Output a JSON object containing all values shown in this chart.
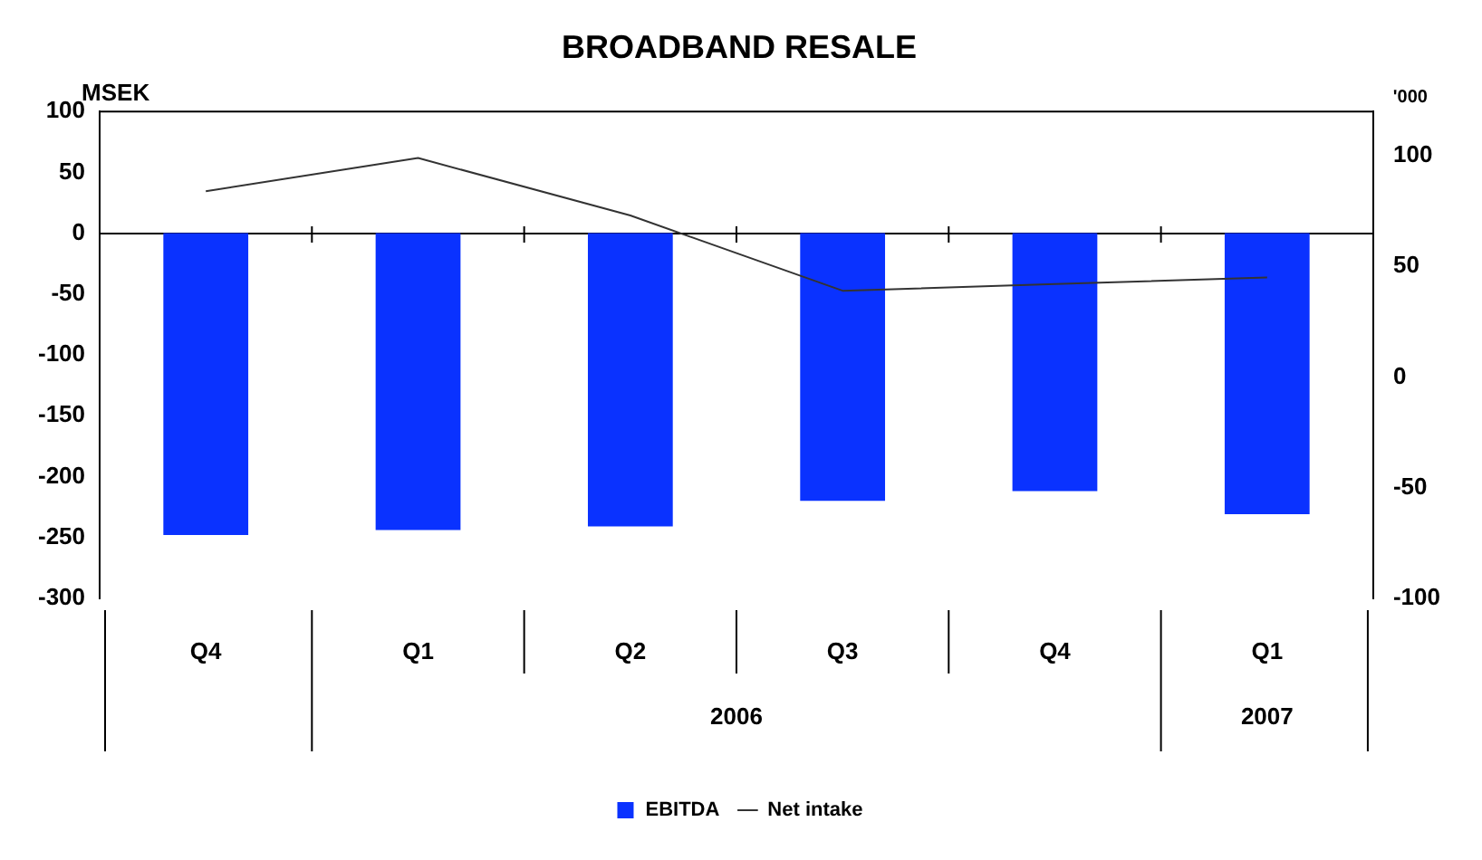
{
  "chart_data": {
    "type": "bar",
    "title": "BROADBAND RESALE",
    "ylabel": "MSEK",
    "y2label": "'000",
    "categories": [
      "Q4",
      "Q1",
      "Q2",
      "Q3",
      "Q4",
      "Q1"
    ],
    "series": [
      {
        "name": "EBITDA",
        "type": "bar",
        "color": "#0a32ff",
        "values": [
          -248,
          -244,
          -241,
          -220,
          -212,
          -231
        ]
      },
      {
        "name": "Net intake",
        "type": "line",
        "axis": "y2",
        "color": "#333333",
        "values": [
          84,
          99,
          73,
          39,
          42,
          45
        ]
      }
    ],
    "ylim": [
      -300,
      100
    ],
    "yticks": [
      -300,
      -250,
      -200,
      -150,
      -100,
      -50,
      0,
      50,
      100
    ],
    "y2lim": [
      -100,
      120
    ],
    "y2ticks": [
      -100,
      -50,
      0,
      50,
      100
    ],
    "annotations": [
      "2006",
      "2007"
    ],
    "legend": "bottom",
    "marker": "none"
  }
}
